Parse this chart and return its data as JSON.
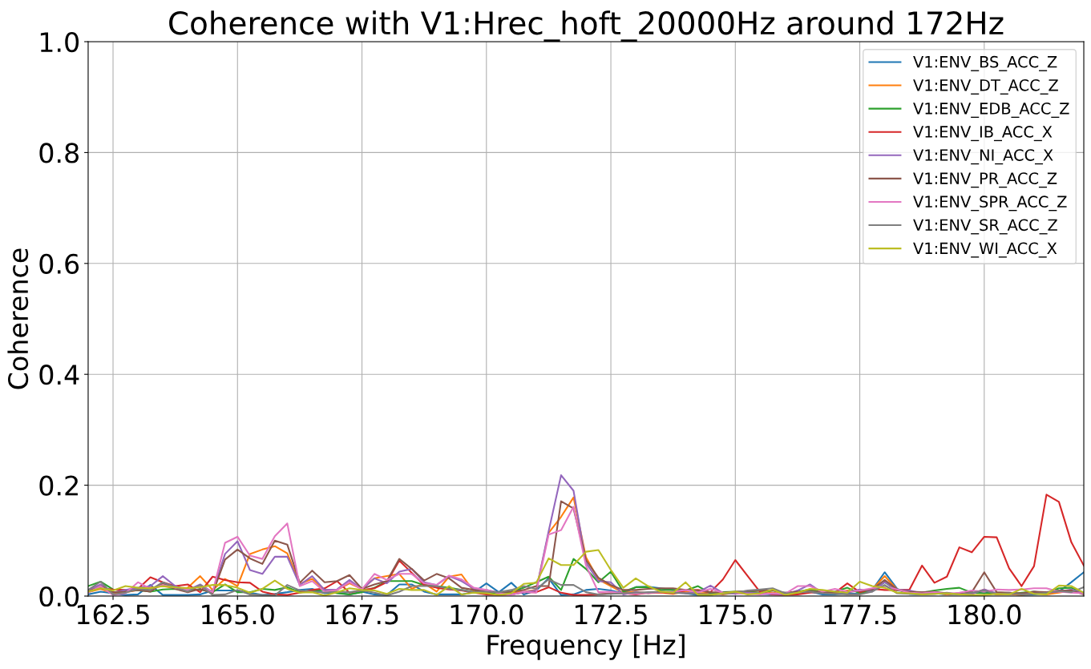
{
  "chart_data": {
    "type": "line",
    "title": "Coherence with V1:Hrec_hoft_20000Hz around 172Hz",
    "xlabel": "Frequency [Hz]",
    "ylabel": "Coherence",
    "x": [
      162,
      162.25,
      162.5,
      162.75,
      163,
      163.25,
      163.5,
      163.75,
      164,
      164.25,
      164.5,
      164.75,
      165,
      165.25,
      165.5,
      165.75,
      166,
      166.25,
      166.5,
      166.75,
      167,
      167.25,
      167.5,
      167.75,
      168,
      168.25,
      168.5,
      168.75,
      169,
      169.25,
      169.5,
      169.75,
      170,
      170.25,
      170.5,
      170.75,
      171,
      171.25,
      171.5,
      171.75,
      172,
      172.25,
      172.5,
      172.75,
      173,
      173.25,
      173.5,
      173.75,
      174,
      174.25,
      174.5,
      174.75,
      175,
      175.25,
      175.5,
      175.75,
      176,
      176.25,
      176.5,
      176.75,
      177,
      177.25,
      177.5,
      177.75,
      178,
      178.25,
      178.5,
      178.75,
      179,
      179.25,
      179.5,
      179.75,
      180,
      180.25,
      180.5,
      180.75,
      181,
      181.25,
      181.5,
      181.75,
      182
    ],
    "xlim": [
      162,
      182
    ],
    "xticks": [
      {
        "value": 162.5,
        "label": "162.5"
      },
      {
        "value": 165,
        "label": "165.0"
      },
      {
        "value": 167.5,
        "label": "167.5"
      },
      {
        "value": 170,
        "label": "170.0"
      },
      {
        "value": 172.5,
        "label": "172.5"
      },
      {
        "value": 175,
        "label": "175.0"
      },
      {
        "value": 177.5,
        "label": "177.5"
      },
      {
        "value": 180,
        "label": "180.0"
      }
    ],
    "ylim": [
      0,
      1
    ],
    "yticks": [
      {
        "value": 0,
        "label": "0.0"
      },
      {
        "value": 0.2,
        "label": "0.2"
      },
      {
        "value": 0.4,
        "label": "0.4"
      },
      {
        "value": 0.6,
        "label": "0.6"
      },
      {
        "value": 0.8,
        "label": "0.8"
      },
      {
        "value": 1,
        "label": "1.0"
      }
    ],
    "grid": true,
    "legend": "top right",
    "line_style": "solid",
    "series": [
      {
        "name": "V1:ENV_BS_ACC_Z",
        "color": "#1f77b4",
        "values": [
          0.003,
          0.008,
          0.005,
          0.002,
          0.003,
          0.02,
          0.002,
          0.002,
          0.002,
          0.003,
          0.01,
          0.01,
          0.01,
          0.006,
          0.002,
          0.004,
          0.007,
          0.011,
          0.013,
          0.005,
          0.006,
          0.003,
          0.008,
          0.003,
          0.002,
          0.021,
          0.021,
          0.008,
          0.003,
          0.003,
          0.003,
          0.007,
          0.023,
          0.007,
          0.024,
          0.003,
          0.01,
          0.032,
          0.002,
          0.003,
          0.011,
          0.013,
          0.01,
          0.005,
          0.016,
          0.017,
          0.014,
          0.011,
          0.005,
          0.002,
          0.002,
          0.006,
          0.007,
          0.006,
          0.004,
          0.003,
          0.006,
          0.004,
          0.008,
          0.003,
          0.003,
          0.005,
          0.004,
          0.011,
          0.043,
          0.013,
          0.004,
          0.003,
          0.005,
          0.003,
          0.004,
          0.005,
          0.008,
          0.003,
          0.004,
          0.002,
          0.003,
          0.005,
          0.008,
          0.025,
          0.043
        ]
      },
      {
        "name": "V1:ENV_DT_ACC_Z",
        "color": "#ff7f0e",
        "values": [
          0.007,
          0.013,
          0.005,
          0.007,
          0.011,
          0.015,
          0.018,
          0.014,
          0.015,
          0.036,
          0.011,
          0.031,
          0.018,
          0.076,
          0.084,
          0.09,
          0.077,
          0.022,
          0.031,
          0.011,
          0.011,
          0.023,
          0.013,
          0.032,
          0.036,
          0.04,
          0.013,
          0.023,
          0.008,
          0.035,
          0.039,
          0.008,
          0.005,
          0.003,
          0.007,
          0.008,
          0.011,
          0.114,
          0.143,
          0.178,
          0.07,
          0.03,
          0.018,
          0.006,
          0.008,
          0.005,
          0.006,
          0.004,
          0.008,
          0.005,
          0.006,
          0.003,
          0.006,
          0.008,
          0.01,
          0.006,
          0.004,
          0.005,
          0.008,
          0.006,
          0.005,
          0.01,
          0.008,
          0.012,
          0.036,
          0.012,
          0.005,
          0.004,
          0.006,
          0.003,
          0.005,
          0.004,
          0.012,
          0.003,
          0.004,
          0.002,
          0.005,
          0.003,
          0.006,
          0.01,
          0.005
        ]
      },
      {
        "name": "V1:ENV_EDB_ACC_Z",
        "color": "#2ca02c",
        "values": [
          0.018,
          0.026,
          0.012,
          0.01,
          0.011,
          0.008,
          0.012,
          0.013,
          0.011,
          0.012,
          0.007,
          0.021,
          0.007,
          0.007,
          0.013,
          0.011,
          0.016,
          0.007,
          0.01,
          0.011,
          0.005,
          0.003,
          0.007,
          0.015,
          0.027,
          0.027,
          0.027,
          0.02,
          0.018,
          0.015,
          0.011,
          0.007,
          0.005,
          0.006,
          0.008,
          0.015,
          0.025,
          0.035,
          0.011,
          0.067,
          0.049,
          0.025,
          0.044,
          0.008,
          0.016,
          0.016,
          0.011,
          0.011,
          0.01,
          0.018,
          0.005,
          0.007,
          0.008,
          0.008,
          0.006,
          0.01,
          0.005,
          0.008,
          0.012,
          0.007,
          0.008,
          0.015,
          0.005,
          0.01,
          0.025,
          0.01,
          0.008,
          0.006,
          0.01,
          0.013,
          0.015,
          0.006,
          0.005,
          0.006,
          0.004,
          0.006,
          0.008,
          0.005,
          0.014,
          0.015,
          0.006
        ]
      },
      {
        "name": "V1:ENV_IB_ACC_X",
        "color": "#d62728",
        "values": [
          0.011,
          0.014,
          0.012,
          0.011,
          0.013,
          0.034,
          0.025,
          0.018,
          0.021,
          0.007,
          0.035,
          0.029,
          0.025,
          0.024,
          0.008,
          0.003,
          0.002,
          0.006,
          0.011,
          0.014,
          0.027,
          0.006,
          0.011,
          0.014,
          0.025,
          0.064,
          0.042,
          0.02,
          0.015,
          0.012,
          0.01,
          0.006,
          0.003,
          0.002,
          0.003,
          0.007,
          0.007,
          0.016,
          0.006,
          0.002,
          0.002,
          0.003,
          0.005,
          0.005,
          0.003,
          0.006,
          0.007,
          0.005,
          0.01,
          0.011,
          0.007,
          0.03,
          0.065,
          0.036,
          0.007,
          0.003,
          0.002,
          0.003,
          0.006,
          0.008,
          0.006,
          0.023,
          0.007,
          0.013,
          0.011,
          0.011,
          0.012,
          0.055,
          0.024,
          0.035,
          0.088,
          0.079,
          0.107,
          0.106,
          0.05,
          0.018,
          0.054,
          0.183,
          0.17,
          0.097,
          0.055
        ]
      },
      {
        "name": "V1:ENV_NI_ACC_X",
        "color": "#9467bd",
        "values": [
          0.011,
          0.021,
          0.006,
          0.011,
          0.015,
          0.018,
          0.036,
          0.018,
          0.011,
          0.021,
          0.007,
          0.076,
          0.099,
          0.047,
          0.04,
          0.071,
          0.071,
          0.02,
          0.036,
          0.011,
          0.012,
          0.029,
          0.012,
          0.032,
          0.023,
          0.044,
          0.049,
          0.025,
          0.02,
          0.036,
          0.027,
          0.013,
          0.011,
          0.006,
          0.003,
          0.007,
          0.01,
          0.117,
          0.218,
          0.19,
          0.06,
          0.027,
          0.025,
          0.003,
          0.007,
          0.005,
          0.008,
          0.006,
          0.005,
          0.007,
          0.019,
          0.006,
          0.004,
          0.006,
          0.005,
          0.004,
          0.003,
          0.01,
          0.021,
          0.006,
          0.008,
          0.006,
          0.012,
          0.008,
          0.025,
          0.012,
          0.01,
          0.005,
          0.004,
          0.006,
          0.003,
          0.004,
          0.012,
          0.005,
          0.006,
          0.004,
          0.008,
          0.006,
          0.008,
          0.012,
          0.005
        ]
      },
      {
        "name": "V1:ENV_PR_ACC_Z",
        "color": "#8c564b",
        "values": [
          0.007,
          0.018,
          0.007,
          0.008,
          0.011,
          0.008,
          0.023,
          0.013,
          0.007,
          0.013,
          0.005,
          0.066,
          0.084,
          0.068,
          0.058,
          0.1,
          0.093,
          0.024,
          0.046,
          0.025,
          0.027,
          0.038,
          0.013,
          0.021,
          0.027,
          0.067,
          0.049,
          0.028,
          0.04,
          0.032,
          0.015,
          0.011,
          0.008,
          0.007,
          0.008,
          0.011,
          0.018,
          0.018,
          0.171,
          0.158,
          0.065,
          0.033,
          0.02,
          0.011,
          0.011,
          0.013,
          0.014,
          0.014,
          0.011,
          0.01,
          0.007,
          0.006,
          0.008,
          0.009,
          0.01,
          0.01,
          0.006,
          0.008,
          0.009,
          0.007,
          0.006,
          0.008,
          0.009,
          0.012,
          0.029,
          0.012,
          0.008,
          0.007,
          0.008,
          0.005,
          0.004,
          0.007,
          0.043,
          0.007,
          0.006,
          0.005,
          0.008,
          0.007,
          0.01,
          0.01,
          0.003
        ]
      },
      {
        "name": "V1:ENV_SPR_ACC_Z",
        "color": "#e377c2",
        "values": [
          0.006,
          0.018,
          0.002,
          0.005,
          0.025,
          0.013,
          0.02,
          0.015,
          0.011,
          0.018,
          0.007,
          0.096,
          0.107,
          0.073,
          0.067,
          0.108,
          0.131,
          0.018,
          0.027,
          0.008,
          0.011,
          0.025,
          0.012,
          0.04,
          0.029,
          0.04,
          0.04,
          0.023,
          0.02,
          0.037,
          0.03,
          0.015,
          0.011,
          0.005,
          0.002,
          0.008,
          0.006,
          0.111,
          0.119,
          0.161,
          0.055,
          0.007,
          0.008,
          0.005,
          0.004,
          0.006,
          0.007,
          0.008,
          0.011,
          0.007,
          0.013,
          0.006,
          0.005,
          0.004,
          0.003,
          0.005,
          0.004,
          0.018,
          0.018,
          0.008,
          0.013,
          0.008,
          0.01,
          0.014,
          0.018,
          0.012,
          0.006,
          0.005,
          0.007,
          0.004,
          0.006,
          0.01,
          0.008,
          0.012,
          0.011,
          0.012,
          0.014,
          0.014,
          0.008,
          0.006,
          0.005
        ]
      },
      {
        "name": "V1:ENV_SR_ACC_Z",
        "color": "#7f7f7f",
        "values": [
          0.011,
          0.026,
          0.003,
          0.006,
          0.013,
          0.011,
          0.025,
          0.016,
          0.008,
          0.02,
          0.002,
          0.003,
          0.011,
          0.003,
          0.002,
          0.001,
          0.02,
          0.01,
          0.008,
          0.006,
          0.008,
          0.007,
          0.01,
          0.006,
          0.001,
          0.008,
          0.018,
          0.018,
          0.018,
          0.013,
          0.011,
          0.007,
          0.008,
          0.007,
          0.011,
          0.018,
          0.013,
          0.03,
          0.02,
          0.02,
          0.007,
          0.003,
          0.004,
          0.005,
          0.006,
          0.007,
          0.008,
          0.006,
          0.005,
          0.004,
          0.003,
          0.004,
          0.006,
          0.01,
          0.012,
          0.014,
          0.005,
          0.006,
          0.008,
          0.005,
          0.004,
          0.003,
          0.003,
          0.008,
          0.02,
          0.005,
          0.004,
          0.003,
          0.004,
          0.005,
          0.003,
          0.006,
          0.01,
          0.004,
          0.005,
          0.003,
          0.004,
          0.006,
          0.009,
          0.007,
          0.016
        ]
      },
      {
        "name": "V1:ENV_WI_ACC_X",
        "color": "#bcbd22",
        "values": [
          0.008,
          0.014,
          0.01,
          0.018,
          0.015,
          0.014,
          0.018,
          0.016,
          0.014,
          0.016,
          0.02,
          0.02,
          0.015,
          0.006,
          0.013,
          0.028,
          0.013,
          0.006,
          0.007,
          0.001,
          0.007,
          0.014,
          0.011,
          0.01,
          0.004,
          0.013,
          0.011,
          0.011,
          0.002,
          0.018,
          0.003,
          0.006,
          0.005,
          0.002,
          0.005,
          0.022,
          0.024,
          0.068,
          0.056,
          0.056,
          0.08,
          0.083,
          0.047,
          0.015,
          0.032,
          0.018,
          0.008,
          0.006,
          0.025,
          0.002,
          0.002,
          0.005,
          0.008,
          0.003,
          0.005,
          0.012,
          0.002,
          0.006,
          0.013,
          0.011,
          0.008,
          0.006,
          0.026,
          0.018,
          0.015,
          0.006,
          0.005,
          0.003,
          0.004,
          0.005,
          0.003,
          0.002,
          0.002,
          0.004,
          0.003,
          0.013,
          0.004,
          0.003,
          0.019,
          0.018,
          0.006
        ]
      }
    ]
  }
}
